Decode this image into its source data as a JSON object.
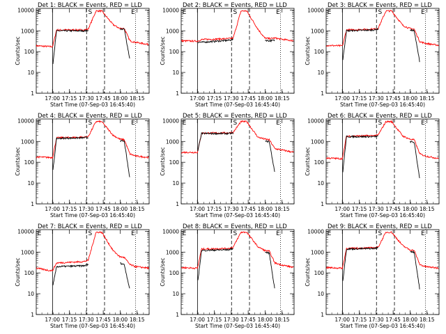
{
  "chart_data": {
    "type": "line",
    "ylabel": "Counts/sec",
    "xlabel": "Start Time (07-Sep-03 16:45:40)",
    "x_tick_labels": [
      "17:00",
      "17:15",
      "17:30",
      "17:45",
      "18:00",
      "18:15"
    ],
    "x_tick_minutes": [
      14.33,
      29.33,
      44.33,
      59.33,
      74.33,
      89.33
    ],
    "x_range_minutes": [
      0,
      100
    ],
    "y_scale": "log",
    "ylim": [
      1,
      12000
    ],
    "y_tick_labels": [
      "1",
      "10",
      "100",
      "1000",
      "10000"
    ],
    "y_tick_values": [
      1,
      10,
      100,
      1000,
      10000
    ],
    "colors": {
      "events": "#000000",
      "lld": "#ff0000"
    },
    "markers": {
      "left": "E",
      "middle": "S",
      "right": "E"
    },
    "panels": [
      {
        "title": "Det 1: BLACK = Events, RED = LLD",
        "x": [
          0,
          12,
          14.5,
          18,
          42,
          46,
          53,
          58,
          68,
          74,
          78,
          83,
          88,
          100
        ],
        "lld": [
          190,
          175,
          175,
          1100,
          1100,
          1200,
          9000,
          9000,
          2000,
          1300,
          1300,
          330,
          280,
          220
        ],
        "events": [
          null,
          null,
          20,
          1000,
          1000,
          1050,
          null,
          null,
          null,
          1200,
          1200,
          40,
          null,
          null
        ]
      },
      {
        "title": "Det 2: BLACK = Events, RED = LLD",
        "x": [
          0,
          12,
          14.5,
          18,
          42,
          46,
          53,
          58,
          68,
          74,
          78,
          83,
          88,
          100
        ],
        "lld": [
          330,
          320,
          320,
          380,
          420,
          440,
          9000,
          9000,
          1200,
          450,
          420,
          450,
          400,
          330
        ],
        "events": [
          null,
          null,
          290,
          280,
          350,
          380,
          null,
          null,
          null,
          360,
          330,
          350,
          null,
          null
        ]
      },
      {
        "title": "Det 3: BLACK = Events, RED = LLD",
        "x": [
          0,
          12,
          14.5,
          18,
          42,
          46,
          53,
          58,
          68,
          74,
          78,
          83,
          88,
          100
        ],
        "lld": [
          200,
          190,
          190,
          1100,
          1200,
          1300,
          9000,
          9000,
          1800,
          1300,
          1200,
          300,
          250,
          200
        ],
        "events": [
          null,
          null,
          30,
          1000,
          1100,
          1200,
          null,
          null,
          null,
          1100,
          1000,
          30,
          null,
          null
        ]
      },
      {
        "title": "Det 4: BLACK = Events, RED = LLD",
        "x": [
          0,
          12,
          14.5,
          18,
          42,
          46,
          53,
          58,
          68,
          74,
          78,
          83,
          88,
          100
        ],
        "lld": [
          180,
          170,
          170,
          1500,
          1600,
          1700,
          9000,
          9000,
          2000,
          1300,
          1200,
          250,
          200,
          170
        ],
        "events": [
          null,
          null,
          30,
          1400,
          1500,
          1550,
          null,
          null,
          null,
          1100,
          1000,
          15,
          null,
          null
        ]
      },
      {
        "title": "Det 5: BLACK = Events, RED = LLD",
        "x": [
          0,
          12,
          14.5,
          18,
          42,
          46,
          53,
          58,
          68,
          74,
          78,
          83,
          88,
          100
        ],
        "lld": [
          300,
          300,
          300,
          2500,
          2600,
          2700,
          9000,
          9000,
          1600,
          1300,
          1200,
          450,
          400,
          300
        ],
        "events": [
          null,
          null,
          300,
          2400,
          2400,
          2500,
          null,
          null,
          null,
          1000,
          1000,
          30,
          null,
          null
        ]
      },
      {
        "title": "Det 6: BLACK = Events, RED = LLD",
        "x": [
          0,
          12,
          14.5,
          18,
          42,
          46,
          53,
          58,
          68,
          74,
          78,
          83,
          88,
          100
        ],
        "lld": [
          160,
          150,
          150,
          1800,
          1900,
          2000,
          9000,
          9000,
          1800,
          1300,
          1200,
          250,
          200,
          150
        ],
        "events": [
          null,
          null,
          25,
          1700,
          1700,
          1800,
          null,
          null,
          null,
          1000,
          900,
          15,
          null,
          null
        ]
      },
      {
        "title": "Det 7: BLACK = Events, RED = LLD",
        "x": [
          0,
          12,
          14.5,
          18,
          42,
          46,
          53,
          58,
          68,
          74,
          78,
          83,
          88,
          100
        ],
        "lld": [
          170,
          130,
          130,
          300,
          350,
          400,
          9000,
          9000,
          1200,
          600,
          550,
          250,
          200,
          170
        ],
        "events": [
          null,
          null,
          20,
          200,
          220,
          250,
          null,
          null,
          null,
          300,
          250,
          15,
          null,
          null
        ]
      },
      {
        "title": "Det 8: BLACK = Events, RED = LLD",
        "x": [
          0,
          12,
          14.5,
          18,
          42,
          46,
          53,
          58,
          68,
          74,
          78,
          83,
          88,
          100
        ],
        "lld": [
          180,
          170,
          170,
          1400,
          1500,
          1700,
          9000,
          9000,
          1800,
          1200,
          1100,
          300,
          250,
          180
        ],
        "events": [
          null,
          null,
          30,
          1200,
          1300,
          1500,
          null,
          null,
          null,
          1000,
          900,
          15,
          null,
          null
        ]
      },
      {
        "title": "Det 9: BLACK = Events, RED = LLD",
        "x": [
          0,
          12,
          14.5,
          18,
          42,
          46,
          53,
          58,
          68,
          74,
          78,
          83,
          88,
          100
        ],
        "lld": [
          180,
          170,
          170,
          1500,
          1600,
          1700,
          9000,
          9000,
          2000,
          1300,
          1200,
          250,
          200,
          170
        ],
        "events": [
          null,
          null,
          30,
          1400,
          1500,
          1600,
          null,
          null,
          null,
          1100,
          1000,
          15,
          null,
          null
        ]
      }
    ]
  }
}
